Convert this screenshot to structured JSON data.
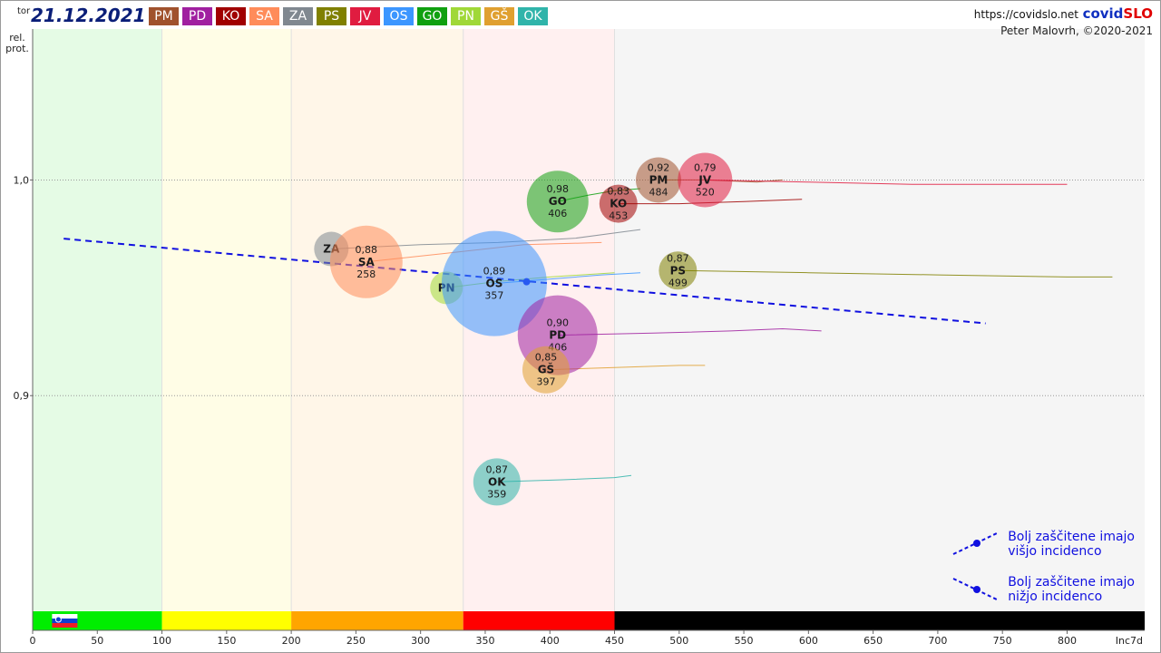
{
  "header": {
    "day": "tor",
    "date": "21.12.2021",
    "url": "https://covidslo.net",
    "brand_a": "covid",
    "brand_b": "SLO",
    "author": "Peter Malovrh, ©2020-2021"
  },
  "badges": [
    {
      "label": "PM",
      "color": "#a0522d"
    },
    {
      "label": "PD",
      "color": "#a020a0"
    },
    {
      "label": "KO",
      "color": "#a00000"
    },
    {
      "label": "SA",
      "color": "#ff8c5a"
    },
    {
      "label": "ZA",
      "color": "#808890"
    },
    {
      "label": "PS",
      "color": "#808000"
    },
    {
      "label": "JV",
      "color": "#e01c40"
    },
    {
      "label": "OS",
      "color": "#3c96ff"
    },
    {
      "label": "GO",
      "color": "#10a010"
    },
    {
      "label": "PN",
      "color": "#a0d838"
    },
    {
      "label": "GŠ",
      "color": "#e0a030"
    },
    {
      "label": "OK",
      "color": "#30b4aa"
    }
  ],
  "legend": {
    "upper_line1": "Bolj  zaščitene imajo",
    "upper_line2": "višjo incidenco",
    "lower_line1": "Bolj  zaščitene imajo",
    "lower_line2": "nižjo incidenco"
  },
  "chart_data": {
    "type": "scatter",
    "ylabel": "rel. prot.",
    "xlabel": "Inc7d",
    "xlim": [
      0,
      860
    ],
    "ylim": [
      0.8,
      1.07
    ],
    "x_ticks": [
      0,
      50,
      100,
      150,
      200,
      250,
      300,
      350,
      400,
      450,
      500,
      550,
      600,
      650,
      700,
      750,
      800
    ],
    "x_tick_labels": [
      "0",
      "50",
      "100",
      "150",
      "200",
      "250",
      "300",
      "350",
      "400",
      "450",
      "500",
      "550",
      "600",
      "650",
      "700",
      "750",
      "800"
    ],
    "x_end_label": "Inc7d",
    "y_ticks": [
      0.9,
      1.0
    ],
    "y_tick_labels": [
      "0,9",
      "1,0"
    ],
    "zones": [
      {
        "from": 0,
        "to": 100,
        "band": "#00ee00",
        "fill": "#e5fbe5"
      },
      {
        "from": 100,
        "to": 200,
        "band": "#ffff00",
        "fill": "#fffde6"
      },
      {
        "from": 200,
        "to": 333,
        "band": "#ffa500",
        "fill": "#fff6e8"
      },
      {
        "from": 333,
        "to": 450,
        "band": "#ff0000",
        "fill": "#fff0f0"
      },
      {
        "from": 450,
        "to": 860,
        "band": "#000000",
        "fill": "#f5f5f5"
      }
    ],
    "regression": {
      "x0": 24,
      "y0": 0.9728,
      "x1": 737,
      "y1": 0.9335
    },
    "mean_point": {
      "x": 382,
      "y": 0.9528
    },
    "points": [
      {
        "name": "PM",
        "x": 484,
        "y": 1.0,
        "value": "0,92",
        "incidence": "484",
        "r": 25,
        "color": "#a0522d",
        "trail": [
          [
            484,
            1.0
          ],
          [
            520,
            1.0
          ],
          [
            560,
            0.999
          ],
          [
            580,
            1.0
          ]
        ]
      },
      {
        "name": "JV",
        "x": 520,
        "y": 1.0,
        "value": "0,79",
        "incidence": "520",
        "r": 30,
        "color": "#e01c40",
        "trail": [
          [
            520,
            1.0
          ],
          [
            600,
            0.999
          ],
          [
            680,
            0.998
          ],
          [
            750,
            0.998
          ],
          [
            800,
            0.998
          ]
        ]
      },
      {
        "name": "GO",
        "x": 406,
        "y": 0.99,
        "value": "0,98",
        "incidence": "406",
        "r": 34,
        "color": "#10a010",
        "trail": [
          [
            406,
            0.99
          ],
          [
            430,
            0.993
          ],
          [
            450,
            0.995
          ],
          [
            470,
            0.996
          ]
        ]
      },
      {
        "name": "KO",
        "x": 453,
        "y": 0.989,
        "value": "0,83",
        "incidence": "453",
        "r": 21,
        "color": "#a00000",
        "trail": [
          [
            453,
            0.989
          ],
          [
            500,
            0.989
          ],
          [
            550,
            0.99
          ],
          [
            595,
            0.991
          ]
        ]
      },
      {
        "name": "ZA",
        "x": 231,
        "y": 0.968,
        "value": "",
        "incidence": "",
        "r": 19,
        "color": "#808890",
        "trail": [
          [
            231,
            0.968
          ],
          [
            300,
            0.97
          ],
          [
            360,
            0.971
          ],
          [
            420,
            0.973
          ],
          [
            470,
            0.977
          ]
        ]
      },
      {
        "name": "SA",
        "x": 258,
        "y": 0.962,
        "value": "0,88",
        "incidence": "258",
        "r": 40,
        "color": "#ff8c5a",
        "trail": [
          [
            258,
            0.962
          ],
          [
            320,
            0.966
          ],
          [
            380,
            0.97
          ],
          [
            440,
            0.971
          ]
        ]
      },
      {
        "name": "PS",
        "x": 499,
        "y": 0.958,
        "value": "0,87",
        "incidence": "499",
        "r": 21,
        "color": "#808000",
        "trail": [
          [
            499,
            0.958
          ],
          [
            600,
            0.957
          ],
          [
            700,
            0.956
          ],
          [
            800,
            0.955
          ],
          [
            835,
            0.955
          ]
        ]
      },
      {
        "name": "PN",
        "x": 320,
        "y": 0.95,
        "value": "",
        "incidence": "",
        "r": 18,
        "color": "#a0d838",
        "trail": [
          [
            320,
            0.95
          ],
          [
            360,
            0.953
          ],
          [
            400,
            0.955
          ],
          [
            450,
            0.957
          ]
        ]
      },
      {
        "name": "OS",
        "x": 357,
        "y": 0.952,
        "value": "0,89",
        "incidence": "357",
        "r": 58,
        "color": "#3c96ff",
        "trail": [
          [
            357,
            0.952
          ],
          [
            400,
            0.954
          ],
          [
            440,
            0.956
          ],
          [
            470,
            0.957
          ]
        ]
      },
      {
        "name": "PD",
        "x": 406,
        "y": 0.928,
        "value": "0,90",
        "incidence": "406",
        "r": 44,
        "color": "#a020a0",
        "trail": [
          [
            406,
            0.928
          ],
          [
            480,
            0.929
          ],
          [
            540,
            0.93
          ],
          [
            580,
            0.931
          ],
          [
            610,
            0.93
          ]
        ]
      },
      {
        "name": "GŠ",
        "x": 397,
        "y": 0.912,
        "value": "0,85",
        "incidence": "397",
        "r": 26,
        "color": "#e0a030",
        "trail": [
          [
            397,
            0.912
          ],
          [
            450,
            0.913
          ],
          [
            500,
            0.914
          ],
          [
            520,
            0.914
          ]
        ]
      },
      {
        "name": "OK",
        "x": 359,
        "y": 0.86,
        "value": "0,87",
        "incidence": "359",
        "r": 26,
        "color": "#30b4aa",
        "trail": [
          [
            359,
            0.86
          ],
          [
            410,
            0.861
          ],
          [
            450,
            0.862
          ],
          [
            463,
            0.863
          ]
        ]
      }
    ]
  }
}
